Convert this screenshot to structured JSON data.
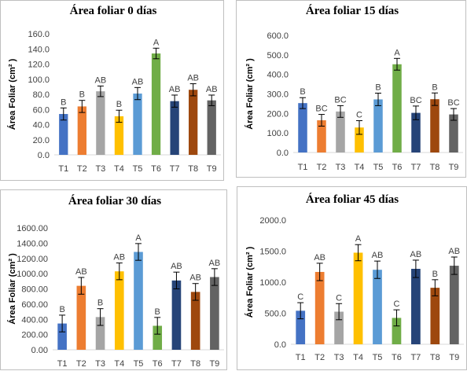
{
  "chart_data": [
    {
      "type": "bar",
      "title": "Área foliar  0 días",
      "ylabel": "Área Foliar (cm² )",
      "categories": [
        "T1",
        "T2",
        "T3",
        "T4",
        "T5",
        "T6",
        "T7",
        "T8",
        "T9"
      ],
      "values": [
        54,
        64,
        84,
        51,
        81,
        134,
        71,
        86,
        72
      ],
      "errors": [
        8,
        8,
        7,
        8,
        8,
        7,
        8,
        8,
        7
      ],
      "labels": [
        "B",
        "B",
        "AB",
        "B",
        "AB",
        "A",
        "AB",
        "AB",
        "AB"
      ],
      "ylim": [
        0,
        160
      ],
      "yticks": [
        "0.0",
        "20.0",
        "40.0",
        "60.0",
        "80.0",
        "100.0",
        "120.0",
        "140.0",
        "160.0"
      ]
    },
    {
      "type": "bar",
      "title": "Área foliar  15 días",
      "ylabel": "Área Foliar (cm² )",
      "categories": [
        "T1",
        "T2",
        "T3",
        "T4",
        "T5",
        "T6",
        "T7",
        "T8",
        "T9"
      ],
      "values": [
        253,
        165,
        210,
        128,
        272,
        452,
        203,
        273,
        195
      ],
      "errors": [
        28,
        30,
        30,
        35,
        32,
        30,
        35,
        32,
        30
      ],
      "labels": [
        "B",
        "BC",
        "BC",
        "C",
        "B",
        "A",
        "BC",
        "B",
        "BC"
      ],
      "ylim": [
        0,
        600
      ],
      "yticks": [
        "0.0",
        "100.0",
        "200.0",
        "300.0",
        "400.0",
        "500.0",
        "600.0"
      ]
    },
    {
      "type": "bar",
      "title": "Área foliar  30 días",
      "ylabel": "Área Foliar (cm² )",
      "categories": [
        "T1",
        "T2",
        "T3",
        "T4",
        "T5",
        "T6",
        "T7",
        "T8",
        "T9"
      ],
      "values": [
        345,
        840,
        430,
        1030,
        1285,
        315,
        910,
        760,
        955
      ],
      "errors": [
        110,
        110,
        110,
        110,
        110,
        110,
        110,
        110,
        110
      ],
      "labels": [
        "B",
        "AB",
        "B",
        "AB",
        "A",
        "B",
        "AB",
        "AB",
        "AB"
      ],
      "ylim": [
        0,
        1600
      ],
      "yticks": [
        "0.00",
        "200.00",
        "400.00",
        "600.00",
        "800.00",
        "1000.00",
        "1200.00",
        "1400.00",
        "1600.00"
      ]
    },
    {
      "type": "bar",
      "title": "Área foliar  45 días",
      "ylabel": "Área Foliar (cm² )",
      "categories": [
        "T1",
        "T2",
        "T3",
        "T4",
        "T5",
        "T6",
        "T7",
        "T8",
        "T9"
      ],
      "values": [
        540,
        1165,
        525,
        1475,
        1200,
        425,
        1215,
        910,
        1265
      ],
      "errors": [
        130,
        140,
        130,
        130,
        140,
        130,
        140,
        130,
        140
      ],
      "labels": [
        "C",
        "AB",
        "C",
        "A",
        "AB",
        "C",
        "AB",
        "B",
        "AB"
      ],
      "ylim": [
        0,
        2000
      ],
      "yticks": [
        "0.0",
        "500.0",
        "1000.0",
        "1500.0",
        "2000.0"
      ]
    }
  ],
  "colors": [
    "#4472c4",
    "#ed7d31",
    "#a5a5a5",
    "#ffc000",
    "#5b9bd5",
    "#70ad47",
    "#264478",
    "#9e480e",
    "#636363"
  ]
}
